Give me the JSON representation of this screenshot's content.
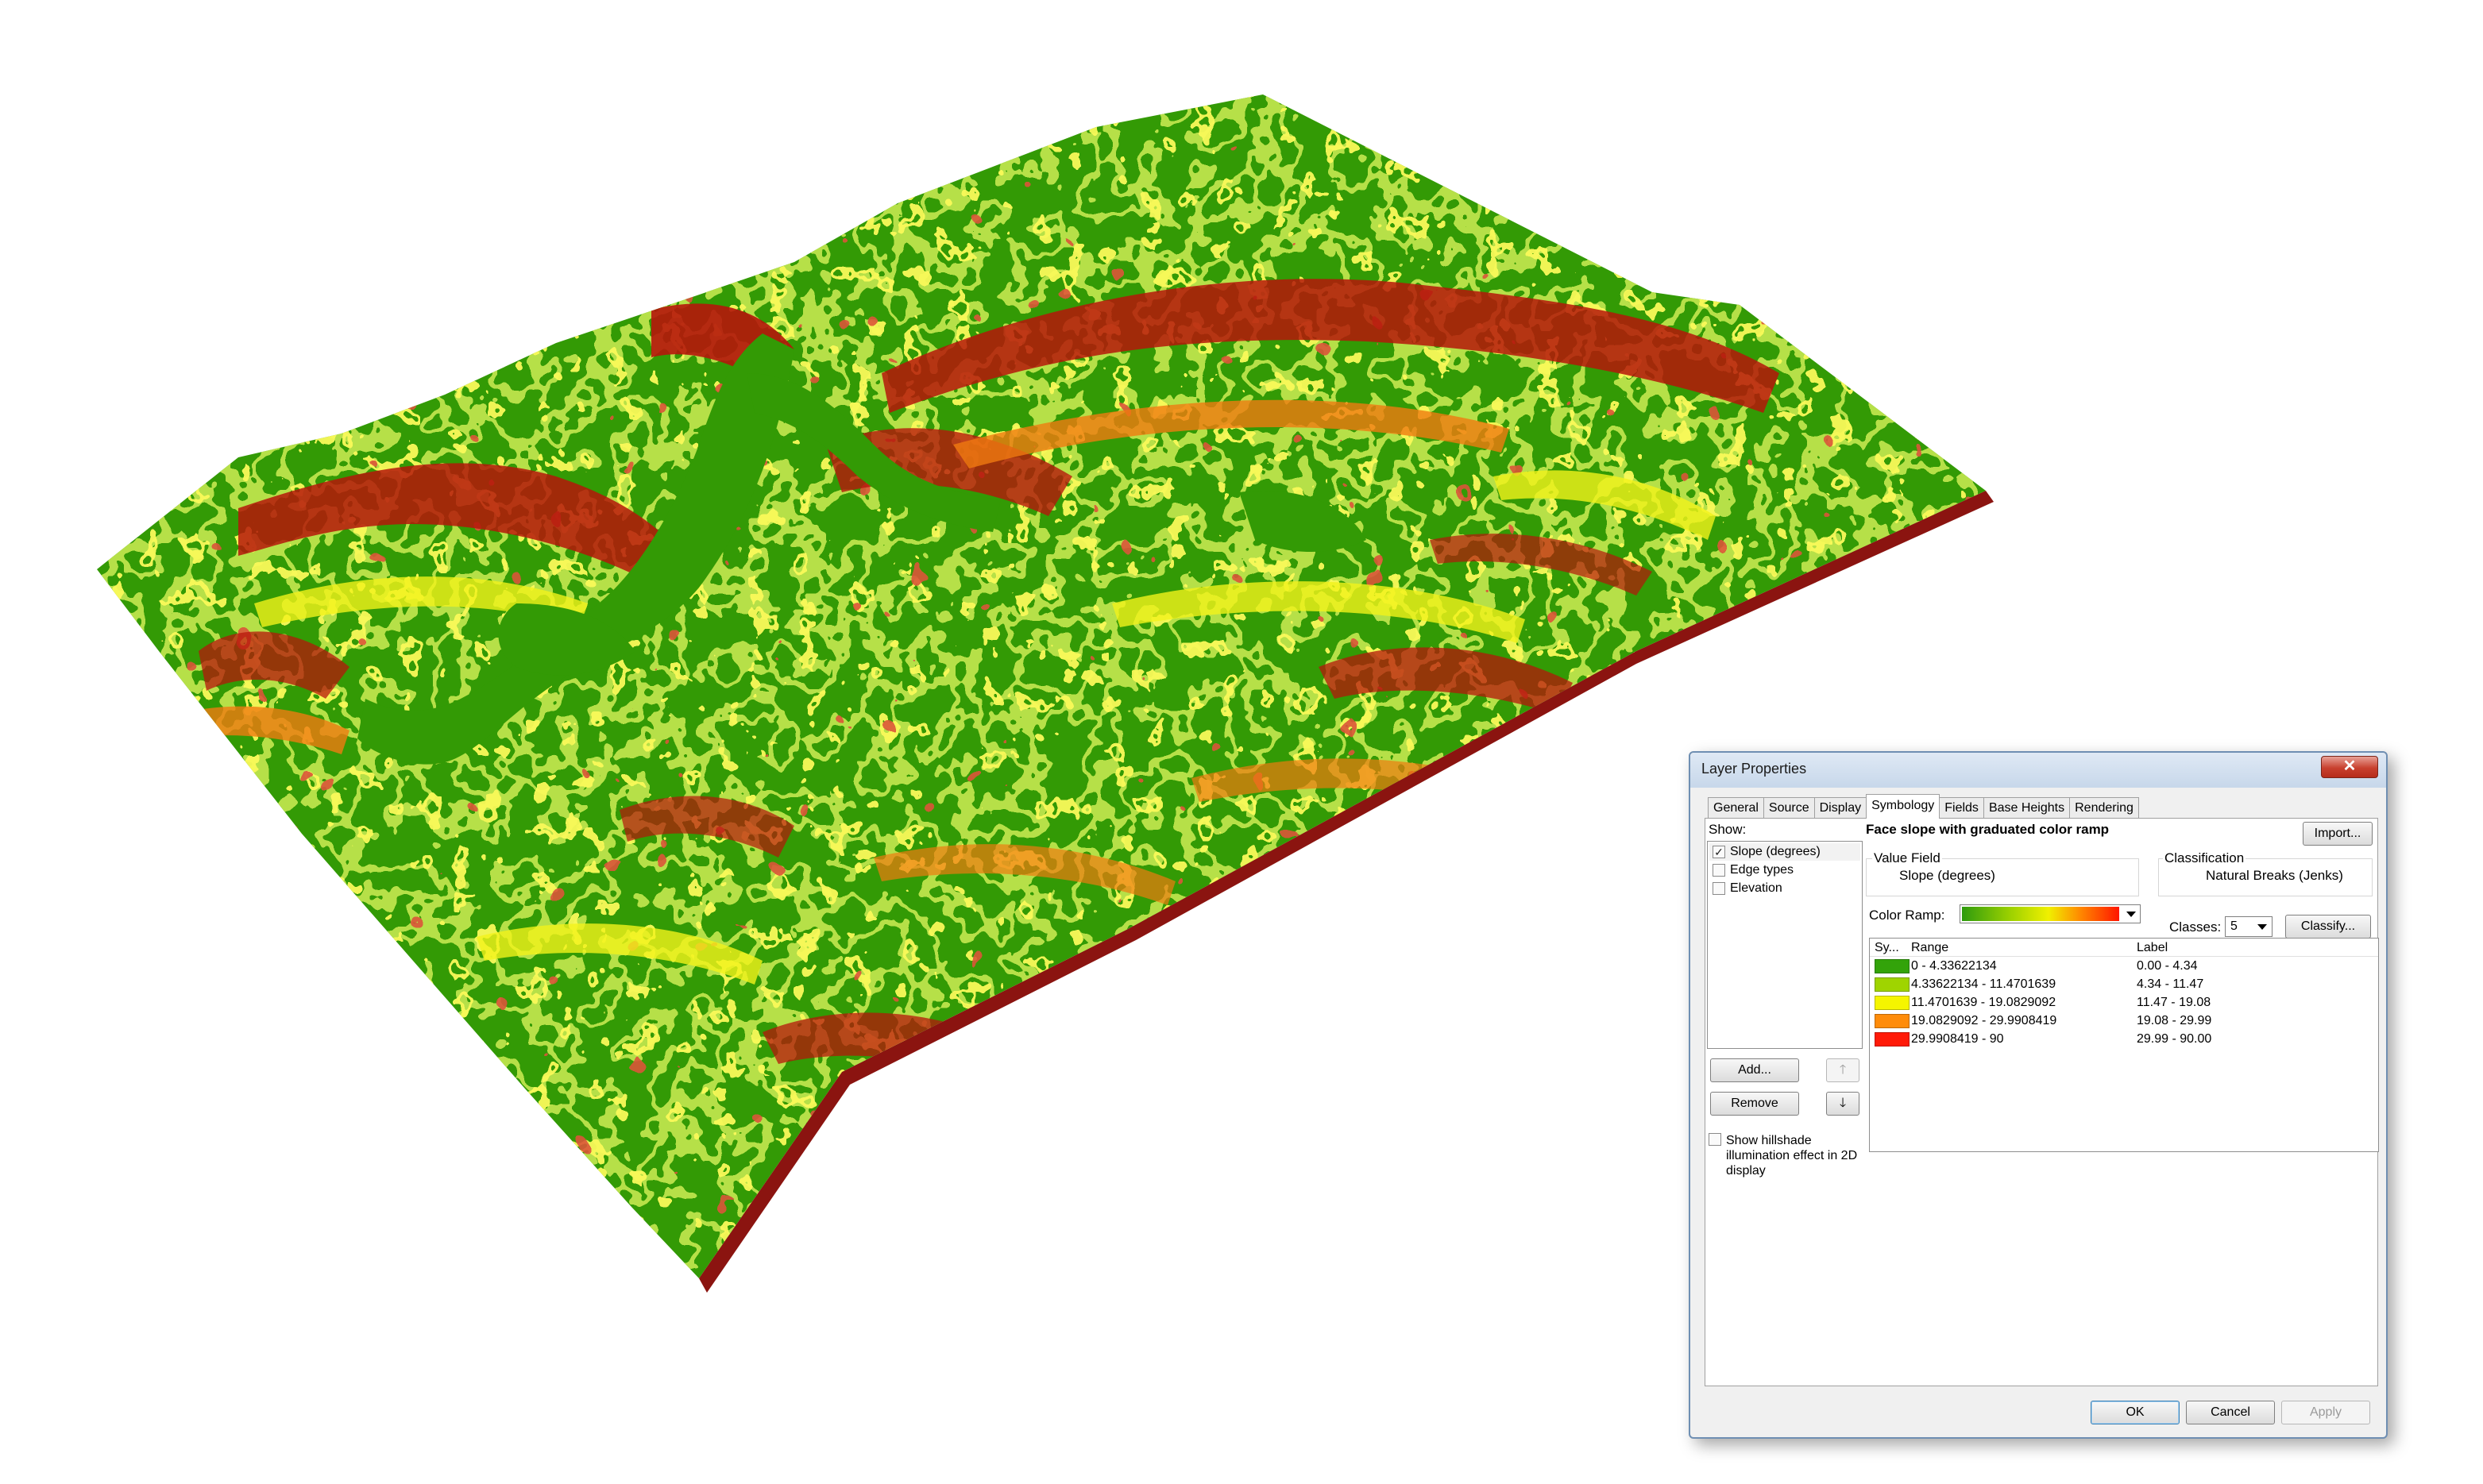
{
  "dialog": {
    "title": "Layer Properties",
    "close_glyph": "✕",
    "tabs": [
      {
        "label": "General"
      },
      {
        "label": "Source"
      },
      {
        "label": "Display"
      },
      {
        "label": "Symbology"
      },
      {
        "label": "Fields"
      },
      {
        "label": "Base Heights"
      },
      {
        "label": "Rendering"
      }
    ],
    "active_tab": "Symbology",
    "show": {
      "heading": "Show:",
      "items": [
        {
          "label": "Slope (degrees)",
          "checked": true
        },
        {
          "label": "Edge types",
          "checked": false
        },
        {
          "label": "Elevation",
          "checked": false
        }
      ],
      "add_label": "Add...",
      "remove_label": "Remove",
      "move_up_glyph": "🡑",
      "move_down_glyph": "🡓",
      "hillshade_label": "Show hillshade illumination effect in 2D display",
      "hillshade_checked": false
    },
    "symbology": {
      "heading": "Face slope with graduated color ramp",
      "import_label": "Import...",
      "value_field_title": "Value Field",
      "value_field": "Slope (degrees)",
      "classification_title": "Classification",
      "classification_method": "Natural Breaks (Jenks)",
      "color_ramp_label": "Color Ramp:",
      "classes_label": "Classes:",
      "classes_value": "5",
      "classify_label": "Classify...",
      "table": {
        "headers": {
          "symbol": "Sy...",
          "range": "Range",
          "label": "Label"
        },
        "rows": [
          {
            "color": "#33a30a",
            "range": "0 - 4.33622134",
            "label": "0.00 - 4.34"
          },
          {
            "color": "#9fd400",
            "range": "4.33622134 - 11.4701639",
            "label": "4.34 - 11.47"
          },
          {
            "color": "#f5f500",
            "range": "11.4701639 - 19.0829092",
            "label": "11.47 - 19.08"
          },
          {
            "color": "#ff8c0a",
            "range": "19.0829092 - 29.9908419",
            "label": "19.08 - 29.99"
          },
          {
            "color": "#ff1a08",
            "range": "29.9908419 - 90",
            "label": "29.99 - 90.00"
          }
        ]
      }
    },
    "buttons": {
      "ok": "OK",
      "cancel": "Cancel",
      "apply": "Apply"
    }
  },
  "scene": {
    "colors": {
      "flat": "#339a05",
      "gentle": "#8fcf14",
      "moderate": "#f2f21a",
      "steep": "#f07a10",
      "very_steep": "#b5160b",
      "base_edge": "#8b1410"
    }
  }
}
